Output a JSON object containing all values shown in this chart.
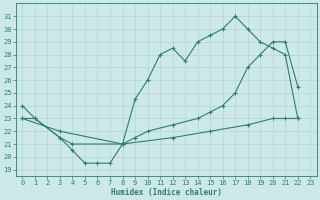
{
  "xlabel": "Humidex (Indice chaleur)",
  "bg_color": "#cce8e8",
  "line_color": "#2e7d6e",
  "grid_color": "#b8d8d8",
  "ylim": [
    18.5,
    32
  ],
  "xlim": [
    -0.5,
    23.5
  ],
  "yticks": [
    19,
    20,
    21,
    22,
    23,
    24,
    25,
    26,
    27,
    28,
    29,
    30,
    31
  ],
  "xticks": [
    0,
    1,
    2,
    3,
    4,
    5,
    6,
    7,
    8,
    9,
    10,
    11,
    12,
    13,
    14,
    15,
    16,
    17,
    18,
    19,
    20,
    21,
    22,
    23
  ],
  "line1_x": [
    0,
    1,
    3,
    4,
    5,
    6,
    7,
    8,
    9,
    10,
    11,
    12,
    13,
    14,
    15,
    16,
    17,
    18,
    19,
    20,
    21,
    22
  ],
  "line1_y": [
    24,
    23,
    21.5,
    20.5,
    19.5,
    19.5,
    19.5,
    21,
    24.5,
    26,
    28,
    28.5,
    27.5,
    29,
    29.5,
    30,
    31,
    30,
    29,
    28.5,
    28,
    23
  ],
  "line2_x": [
    0,
    3,
    8,
    9,
    10,
    12,
    14,
    15,
    16,
    17,
    18,
    19,
    20,
    21,
    22
  ],
  "line2_y": [
    23,
    22,
    21,
    21.5,
    22,
    22.5,
    23,
    23.5,
    24,
    25,
    27,
    28,
    29,
    29,
    25.5
  ],
  "line3_x": [
    0,
    1,
    3,
    4,
    8,
    12,
    15,
    18,
    20,
    21,
    22
  ],
  "line3_y": [
    23,
    23,
    21.5,
    21,
    21,
    21.5,
    22,
    22.5,
    23,
    23,
    23
  ]
}
